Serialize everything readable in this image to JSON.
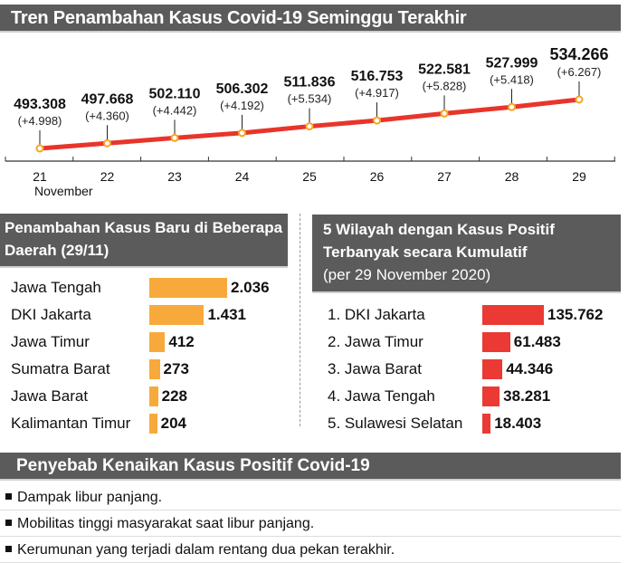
{
  "chart_data": [
    {
      "type": "line",
      "title": "Tren Penambahan Kasus Covid-19 Seminggu Terakhir",
      "x": [
        "21",
        "22",
        "23",
        "24",
        "25",
        "26",
        "27",
        "28",
        "29"
      ],
      "x_sublabel": "November",
      "values": [
        493308,
        497668,
        502110,
        506302,
        511836,
        516753,
        522581,
        527999,
        534266
      ],
      "value_labels": [
        "493.308",
        "497.668",
        "502.110",
        "506.302",
        "511.836",
        "516.753",
        "522.581",
        "527.999",
        "534.266"
      ],
      "increments": [
        "(+4.998)",
        "(+4.360)",
        "(+4.442)",
        "(+4.192)",
        "(+5.534)",
        "(+4.917)",
        "(+5.828)",
        "(+5.418)",
        "(+6.267)"
      ],
      "line_color": "#e8352b",
      "marker_color": "#f5a623",
      "grid": false
    },
    {
      "type": "bar",
      "title": "Penambahan Kasus Baru di Beberapa Daerah (29/11)",
      "categories": [
        "Jawa Tengah",
        "DKI Jakarta",
        "Jawa Timur",
        "Sumatra Barat",
        "Jawa Barat",
        "Kalimantan Timur"
      ],
      "values": [
        2036,
        1431,
        412,
        273,
        228,
        204
      ],
      "value_labels": [
        "2.036",
        "1.431",
        "412",
        "273",
        "228",
        "204"
      ],
      "color": "#f7aa3b"
    },
    {
      "type": "bar",
      "title": "5 Wilayah dengan Kasus Positif Terbanyak secara Kumulatif",
      "subtitle": "(per 29 November 2020)",
      "categories": [
        "1. DKI Jakarta",
        "2. Jawa Timur",
        "3. Jawa Barat",
        "4. Jawa Tengah",
        "5. Sulawesi Selatan"
      ],
      "values": [
        135762,
        61483,
        44346,
        38281,
        18403
      ],
      "value_labels": [
        "135.762",
        "61.483",
        "44.346",
        "38.281",
        "18.403"
      ],
      "color": "#ea3a33"
    }
  ],
  "causes": {
    "title": "Penyebab Kenaikan Kasus Positif Covid-19",
    "items": [
      "Dampak libur panjang.",
      "Mobilitas tinggi masyarakat saat libur panjang.",
      "Kerumunan yang terjadi dalam rentang dua pekan terakhir."
    ]
  }
}
